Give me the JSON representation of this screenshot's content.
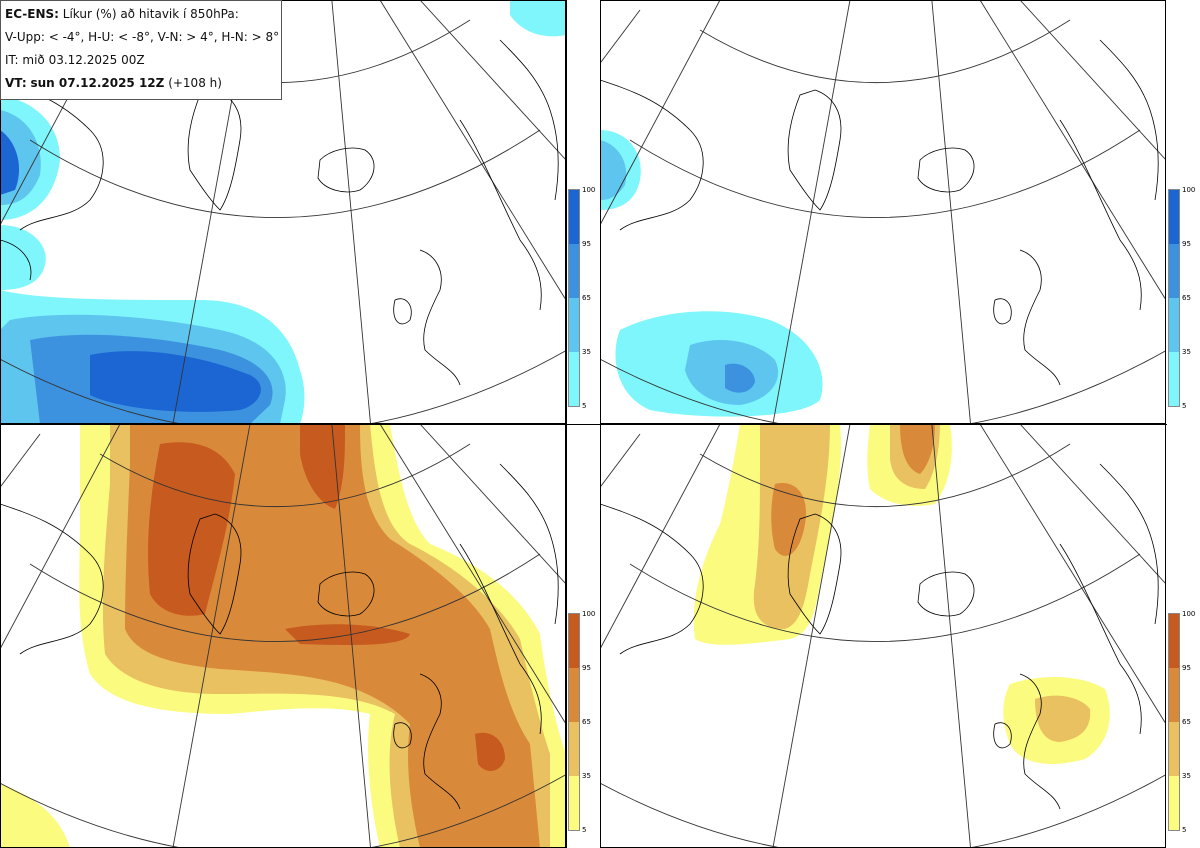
{
  "header": {
    "model": "EC-ENS:",
    "title": "Líkur (%) að hitavik í 850hPa:",
    "thresholds": "V-Upp: < -4°, H-U: < -8°, V-N: > 4°, H-N: > 8°",
    "initial_time": "IT: mið 03.12.2025 00Z",
    "valid_label": "VT:",
    "valid_time": "sun 07.12.2025 12Z",
    "lead_time": "(+108 h)"
  },
  "panels": [
    {
      "id": "top-left",
      "variable": "cold anomaly < -4°",
      "palette": "blue"
    },
    {
      "id": "top-right",
      "variable": "cold anomaly < -8°",
      "palette": "blue"
    },
    {
      "id": "bottom-left",
      "variable": "warm anomaly > 4°",
      "palette": "orange"
    },
    {
      "id": "bottom-right",
      "variable": "warm anomaly > 8°",
      "palette": "orange"
    }
  ],
  "colorbars": {
    "ticks": [
      "100",
      "95",
      "65",
      "35",
      "5"
    ],
    "blue_colors": [
      "#1c66d4",
      "#3d92e0",
      "#5ec5ee",
      "#7ff6fb"
    ],
    "orange_colors": [
      "#c75a1e",
      "#d9893a",
      "#e9c160",
      "#fbfb80"
    ]
  }
}
